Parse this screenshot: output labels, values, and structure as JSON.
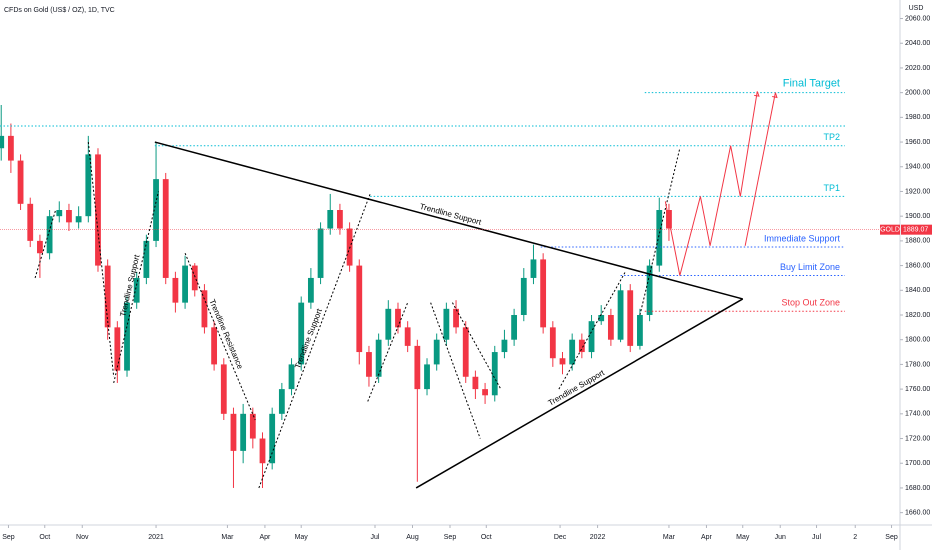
{
  "chart_data": {
    "type": "candlestick",
    "title": "CFDs on Gold (US$ / OZ), 1D, TVC",
    "y_axis_label": "USD",
    "symbol": "GOLD",
    "last_price": {
      "value": 1889.07,
      "label": "1889.07"
    },
    "up_color": "#089981",
    "down_color": "#f23645",
    "grid": false,
    "xlim": [
      -7,
      737
    ],
    "ylim": [
      1650,
      2075
    ],
    "xticks": [
      {
        "value": 0,
        "label": "Sep"
      },
      {
        "value": 30,
        "label": "Oct"
      },
      {
        "value": 61,
        "label": "Nov"
      },
      {
        "value": 122,
        "label": "2021"
      },
      {
        "value": 181,
        "label": "Mar"
      },
      {
        "value": 212,
        "label": "Apr"
      },
      {
        "value": 242,
        "label": "May"
      },
      {
        "value": 303,
        "label": "Jul"
      },
      {
        "value": 334,
        "label": "Aug"
      },
      {
        "value": 365,
        "label": "Sep"
      },
      {
        "value": 395,
        "label": "Oct"
      },
      {
        "value": 456,
        "label": "Dec"
      },
      {
        "value": 487,
        "label": "2022"
      },
      {
        "value": 546,
        "label": "Mar"
      },
      {
        "value": 577,
        "label": "Apr"
      },
      {
        "value": 607,
        "label": "May"
      },
      {
        "value": 638,
        "label": "Jun"
      },
      {
        "value": 668,
        "label": "Jul"
      },
      {
        "value": 700,
        "label": "2"
      },
      {
        "value": 730,
        "label": "Sep"
      }
    ],
    "yticks": [
      {
        "value": 1660,
        "label": "1660.00"
      },
      {
        "value": 1680,
        "label": "1680.00"
      },
      {
        "value": 1700,
        "label": "1700.00"
      },
      {
        "value": 1720,
        "label": "1720.00"
      },
      {
        "value": 1740,
        "label": "1740.00"
      },
      {
        "value": 1760,
        "label": "1760.00"
      },
      {
        "value": 1780,
        "label": "1780.00"
      },
      {
        "value": 1800,
        "label": "1800.00"
      },
      {
        "value": 1820,
        "label": "1820.00"
      },
      {
        "value": 1840,
        "label": "1840.00"
      },
      {
        "value": 1860,
        "label": "1860.00"
      },
      {
        "value": 1880,
        "label": "1880.00"
      },
      {
        "value": 1900,
        "label": "1900.00"
      },
      {
        "value": 1920,
        "label": "1920.00"
      },
      {
        "value": 1940,
        "label": "1940.00"
      },
      {
        "value": 1960,
        "label": "1960.00"
      },
      {
        "value": 1980,
        "label": "1980.00"
      },
      {
        "value": 2000,
        "label": "2000.00"
      },
      {
        "value": 2020,
        "label": "2020.00"
      },
      {
        "value": 2040,
        "label": "2040.00"
      },
      {
        "value": 2060,
        "label": "2060.00"
      }
    ],
    "x": [
      -6,
      2,
      10,
      18,
      26,
      34,
      42,
      50,
      58,
      66,
      74,
      82,
      90,
      98,
      106,
      114,
      122,
      130,
      138,
      146,
      154,
      162,
      170,
      178,
      186,
      194,
      202,
      210,
      218,
      226,
      234,
      242,
      250,
      258,
      266,
      274,
      282,
      290,
      298,
      306,
      314,
      322,
      330,
      338,
      346,
      354,
      362,
      370,
      378,
      386,
      394,
      402,
      410,
      418,
      426,
      434,
      442,
      450,
      458,
      466,
      474,
      482,
      490,
      498,
      506,
      514,
      522,
      530,
      538,
      546
    ],
    "open": [
      1955,
      1965,
      1945,
      1910,
      1880,
      1870,
      1900,
      1905,
      1895,
      1900,
      1950,
      1860,
      1810,
      1775,
      1830,
      1850,
      1880,
      1930,
      1850,
      1830,
      1860,
      1840,
      1810,
      1780,
      1740,
      1710,
      1740,
      1720,
      1700,
      1740,
      1760,
      1780,
      1830,
      1850,
      1890,
      1905,
      1890,
      1860,
      1790,
      1770,
      1800,
      1825,
      1810,
      1795,
      1760,
      1780,
      1800,
      1825,
      1810,
      1770,
      1760,
      1755,
      1790,
      1800,
      1820,
      1850,
      1865,
      1810,
      1785,
      1780,
      1800,
      1790,
      1815,
      1820,
      1800,
      1840,
      1795,
      1820,
      1860,
      1905
    ],
    "high": [
      1990,
      1975,
      1950,
      1915,
      1885,
      1905,
      1912,
      1910,
      1908,
      1965,
      1955,
      1865,
      1815,
      1835,
      1855,
      1885,
      1960,
      1935,
      1855,
      1868,
      1862,
      1845,
      1815,
      1785,
      1745,
      1748,
      1745,
      1725,
      1745,
      1765,
      1785,
      1835,
      1858,
      1895,
      1918,
      1910,
      1895,
      1865,
      1795,
      1805,
      1832,
      1830,
      1815,
      1800,
      1785,
      1805,
      1830,
      1832,
      1815,
      1775,
      1765,
      1795,
      1808,
      1825,
      1858,
      1877,
      1870,
      1815,
      1790,
      1805,
      1805,
      1820,
      1828,
      1825,
      1845,
      1845,
      1825,
      1865,
      1915,
      1910
    ],
    "low": [
      1945,
      1935,
      1905,
      1875,
      1850,
      1865,
      1895,
      1888,
      1890,
      1895,
      1855,
      1800,
      1765,
      1770,
      1825,
      1845,
      1875,
      1845,
      1822,
      1825,
      1835,
      1805,
      1775,
      1735,
      1680,
      1700,
      1712,
      1680,
      1695,
      1735,
      1755,
      1775,
      1825,
      1845,
      1885,
      1885,
      1855,
      1780,
      1762,
      1765,
      1795,
      1805,
      1790,
      1685,
      1755,
      1775,
      1795,
      1805,
      1765,
      1752,
      1748,
      1750,
      1785,
      1795,
      1815,
      1845,
      1805,
      1778,
      1772,
      1775,
      1785,
      1785,
      1812,
      1795,
      1798,
      1790,
      1792,
      1815,
      1855,
      1880
    ],
    "close": [
      1965,
      1945,
      1910,
      1880,
      1870,
      1900,
      1905,
      1895,
      1900,
      1950,
      1860,
      1810,
      1775,
      1830,
      1850,
      1880,
      1930,
      1850,
      1830,
      1860,
      1840,
      1810,
      1780,
      1740,
      1710,
      1740,
      1720,
      1700,
      1740,
      1760,
      1780,
      1830,
      1850,
      1890,
      1905,
      1890,
      1860,
      1790,
      1770,
      1800,
      1825,
      1810,
      1795,
      1760,
      1780,
      1800,
      1825,
      1810,
      1770,
      1760,
      1755,
      1790,
      1800,
      1820,
      1850,
      1865,
      1810,
      1785,
      1780,
      1800,
      1790,
      1815,
      1820,
      1800,
      1840,
      1795,
      1820,
      1860,
      1905,
      1890
    ],
    "levels": [
      {
        "value": 1973,
        "from": -7,
        "color": "#00bcd4"
      },
      {
        "name": "Final Target",
        "value": 2000,
        "from": 526,
        "color": "#00bcd4"
      },
      {
        "name": "TP2",
        "value": 1957,
        "from": 121,
        "color": "#00bcd4"
      },
      {
        "name": "TP1",
        "value": 1916,
        "from": 299,
        "color": "#00bcd4"
      },
      {
        "name": "Immediate Support",
        "value": 1875,
        "from": 440,
        "color": "#2962ff"
      },
      {
        "name": "Buy Limit Zone",
        "value": 1852,
        "from": 506,
        "color": "#2962ff"
      },
      {
        "name": "Stop Out Zone",
        "value": 1823,
        "from": 526,
        "color": "#f23645"
      }
    ],
    "lines": [
      {
        "x": [
          121,
          607
        ],
        "y": [
          1960,
          1833
        ],
        "style": "solid",
        "label": "Trendline Support"
      },
      {
        "x": [
          337,
          607
        ],
        "y": [
          1680,
          1833
        ],
        "style": "solid",
        "label": "Trendline Support"
      },
      {
        "x": [
          87,
          124
        ],
        "y": [
          1765,
          1920
        ],
        "style": "dotted",
        "label": "Trendline Support"
      },
      {
        "x": [
          146,
          204
        ],
        "y": [
          1870,
          1735
        ],
        "style": "dotted",
        "label": "Trendline Resistance"
      },
      {
        "x": [
          207,
          299
        ],
        "y": [
          1680,
          1918
        ],
        "style": "dotted",
        "label": "Trendline Support"
      },
      {
        "x": [
          66,
          87
        ],
        "y": [
          1960,
          1770
        ],
        "style": "dotted"
      },
      {
        "x": [
          22,
          39
        ],
        "y": [
          1850,
          1905
        ],
        "style": "dotted"
      },
      {
        "x": [
          297,
          330
        ],
        "y": [
          1750,
          1830
        ],
        "style": "dotted"
      },
      {
        "x": [
          349,
          390
        ],
        "y": [
          1830,
          1720
        ],
        "style": "dotted"
      },
      {
        "x": [
          367,
          407
        ],
        "y": [
          1830,
          1760
        ],
        "style": "dotted"
      },
      {
        "x": [
          455,
          510
        ],
        "y": [
          1760,
          1855
        ],
        "style": "dotted"
      },
      {
        "x": [
          522,
          555
        ],
        "y": [
          1820,
          1955
        ],
        "style": "dotted"
      }
    ],
    "projection_color": "#f23645",
    "projections": [
      {
        "x": [
          543,
          555,
          572,
          580,
          597,
          605,
          619
        ],
        "y": [
          1912,
          1852,
          1916,
          1876,
          1957,
          1916,
          2001
        ]
      },
      {
        "x": [
          609,
          634
        ],
        "y": [
          1876,
          2000
        ]
      }
    ]
  }
}
